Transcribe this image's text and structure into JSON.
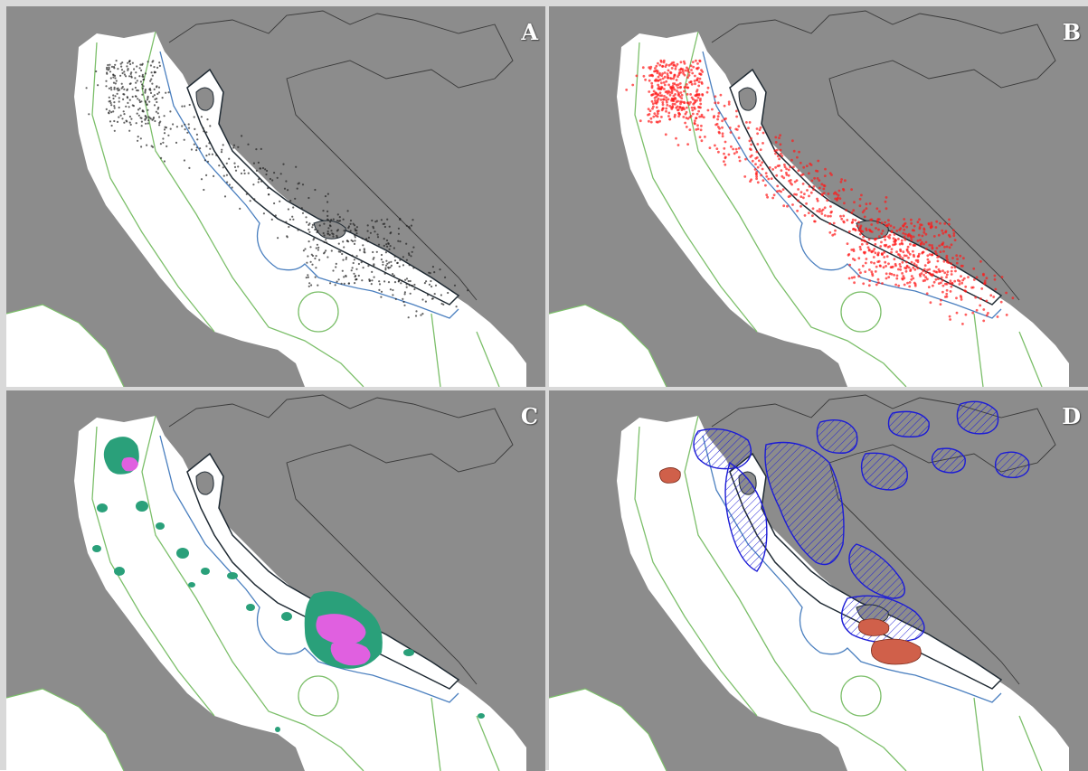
{
  "figure": {
    "panels": [
      {
        "id": "A",
        "label": "A",
        "overlay": "black-points"
      },
      {
        "id": "B",
        "label": "B",
        "overlay": "red-points"
      },
      {
        "id": "C",
        "label": "C",
        "overlay": "green-magenta-patches"
      },
      {
        "id": "D",
        "label": "D",
        "overlay": "blue-hatched-and-red-areas"
      }
    ]
  },
  "colors": {
    "land": "#8c8c8c",
    "sea": "#ffffff",
    "coastline": "#1f2a33",
    "border": "#3a3a3a",
    "zone_green": "#7cbf6a",
    "zone_blue": "#4a7fbf",
    "points_a": "#222222",
    "points_b": "#ff1a1a",
    "patch_green": "#2aa07a",
    "patch_magenta": "#e060e0",
    "hatch_blue": "#1c1cd6",
    "area_red": "#d0604a"
  }
}
